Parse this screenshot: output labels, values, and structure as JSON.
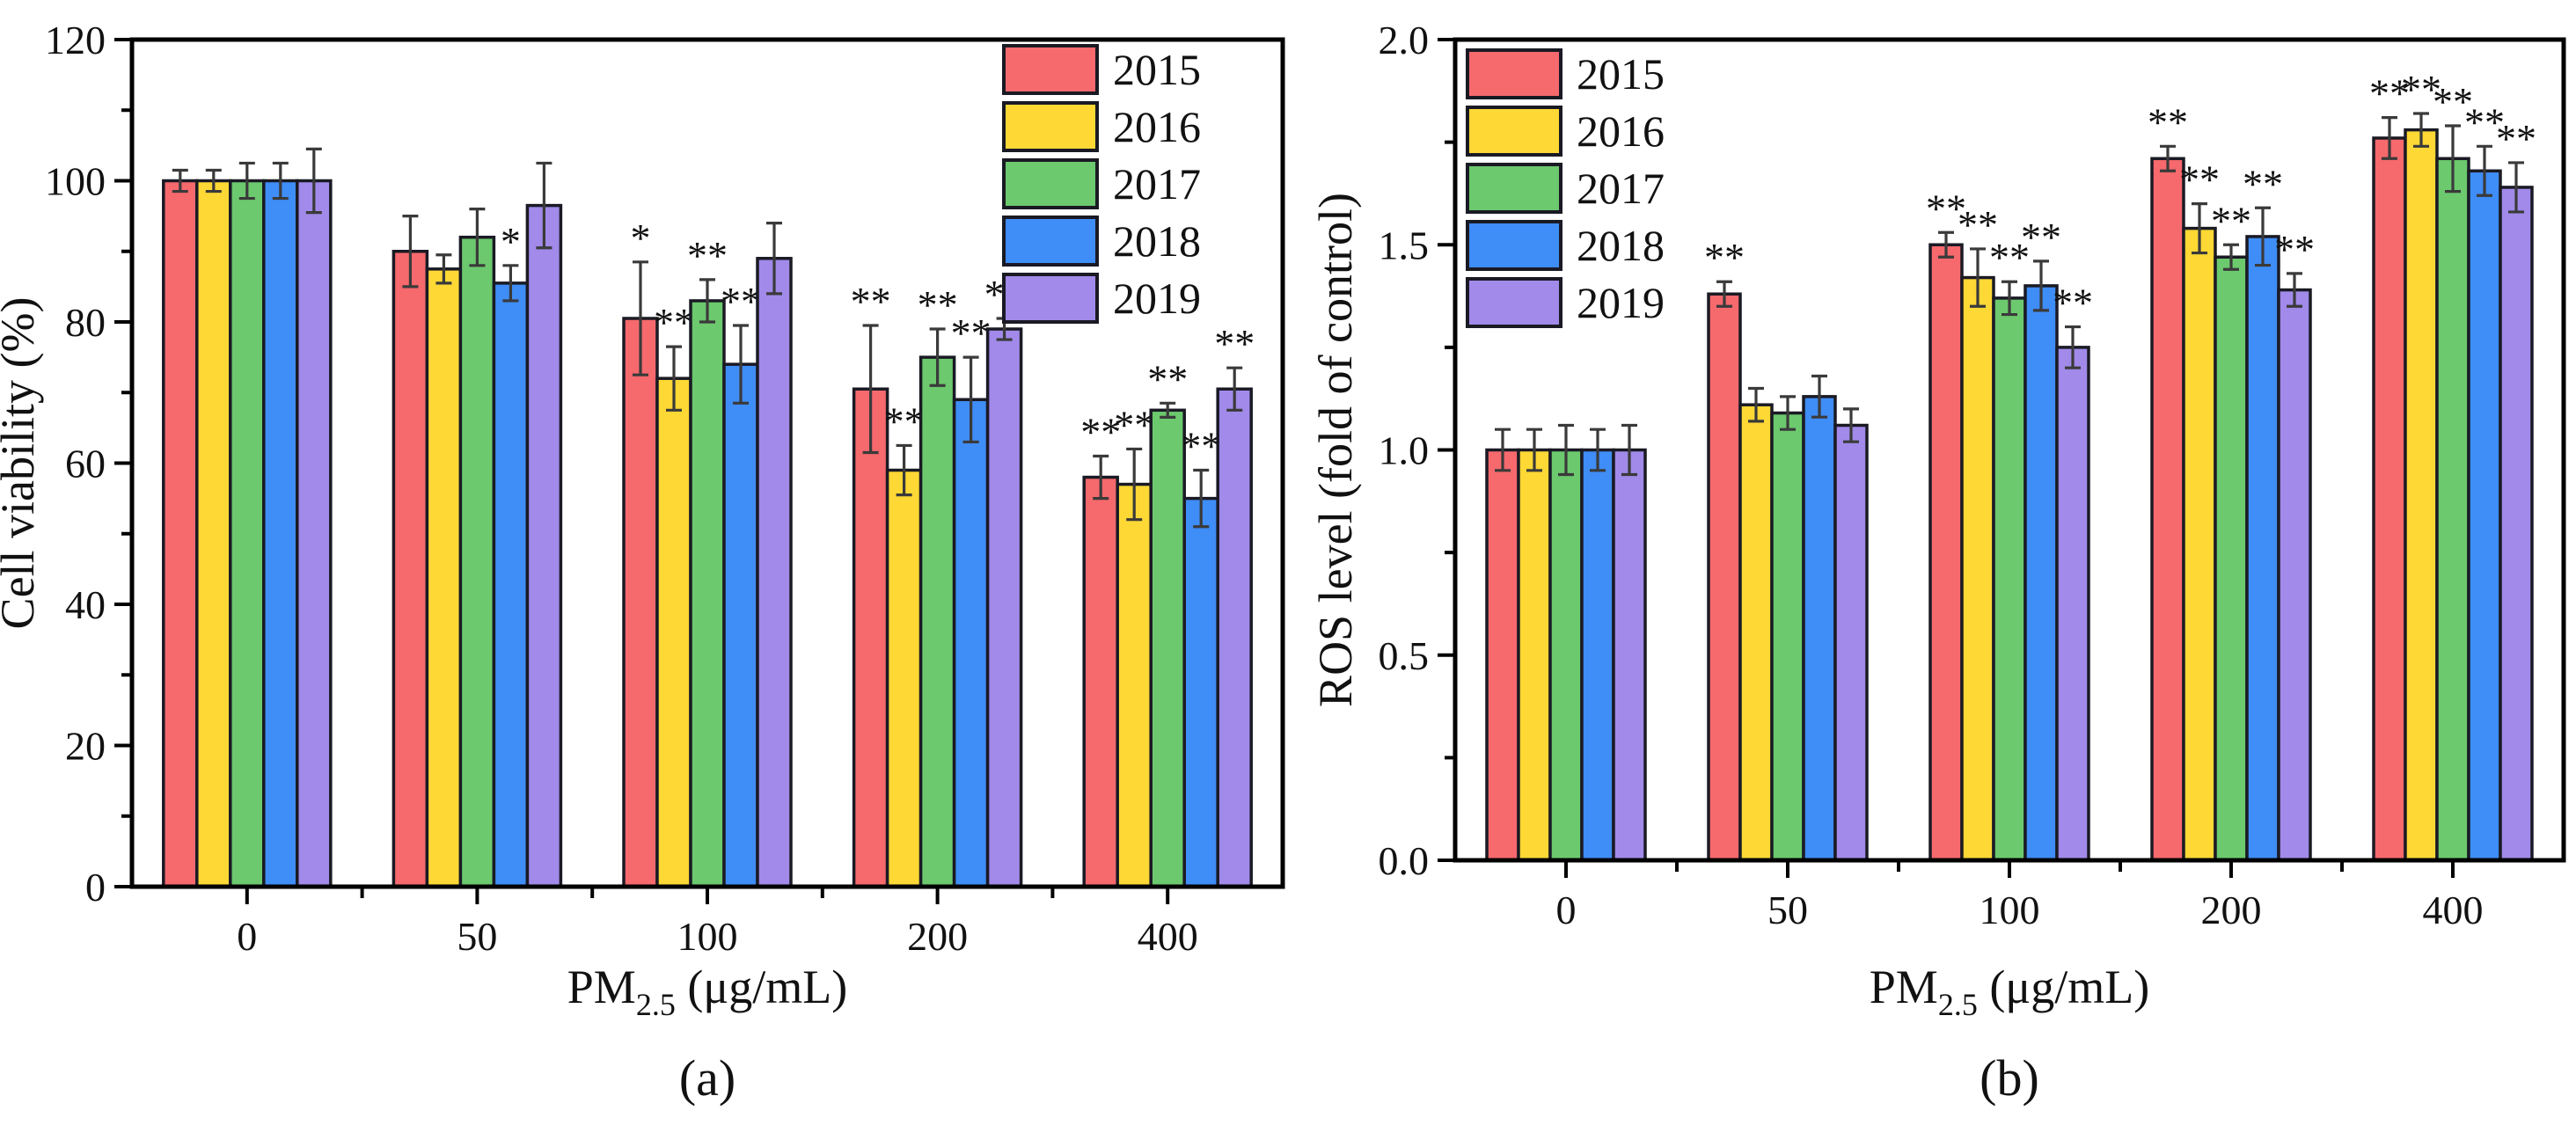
{
  "figure": {
    "captions": [
      "(a)",
      "(b)"
    ],
    "background": "#ffffff"
  },
  "palette": {
    "outline": "#1a1a24",
    "error_bar": "#3a3a3a",
    "axis": "#000000",
    "text": "#111111",
    "series_colors": {
      "2015": "#f6696d",
      "2016": "#fed835",
      "2017": "#6cc96e",
      "2018": "#3f8df6",
      "2019": "#a18ae9"
    }
  },
  "chart_data": [
    {
      "type": "bar",
      "panel": "a",
      "title": "",
      "ylabel": "Cell viability (%)",
      "xlabel": {
        "pre": "PM",
        "sub": "2.5",
        "post": " (μg/mL)"
      },
      "categories": [
        "0",
        "50",
        "100",
        "200",
        "400"
      ],
      "ylim": [
        0,
        120
      ],
      "yticks": [
        0,
        20,
        40,
        60,
        80,
        100,
        120
      ],
      "ytick_labels": [
        "0",
        "20",
        "40",
        "60",
        "80",
        "100",
        "120"
      ],
      "yminor": [
        10,
        30,
        50,
        70,
        90,
        110
      ],
      "grid": false,
      "legend_position": "top-right",
      "series": [
        {
          "name": "2015",
          "color": "#f6696d",
          "values": [
            100,
            90,
            80.5,
            70.5,
            58
          ],
          "errors": [
            1.5,
            5,
            8,
            9,
            3
          ],
          "sig": [
            "",
            "",
            "*",
            "**",
            "**"
          ]
        },
        {
          "name": "2016",
          "color": "#fed835",
          "values": [
            100,
            87.5,
            72,
            59,
            57
          ],
          "errors": [
            1.5,
            2,
            4.5,
            3.5,
            5
          ],
          "sig": [
            "",
            "",
            "**",
            "**",
            "**"
          ]
        },
        {
          "name": "2017",
          "color": "#6cc96e",
          "values": [
            100,
            92,
            83,
            75,
            67.5
          ],
          "errors": [
            2.5,
            4,
            3,
            4,
            1
          ],
          "sig": [
            "",
            "",
            "**",
            "**",
            "**"
          ]
        },
        {
          "name": "2018",
          "color": "#3f8df6",
          "values": [
            100,
            85.5,
            74,
            69,
            55
          ],
          "errors": [
            2.5,
            2.5,
            5.5,
            6,
            4
          ],
          "sig": [
            "",
            "*",
            "**",
            "**",
            "**"
          ]
        },
        {
          "name": "2019",
          "color": "#a18ae9",
          "values": [
            100,
            96.5,
            89,
            79,
            70.5
          ],
          "errors": [
            4.5,
            6,
            5,
            1.5,
            3
          ],
          "sig": [
            "",
            "",
            "",
            "**",
            "**"
          ]
        }
      ]
    },
    {
      "type": "bar",
      "panel": "b",
      "title": "",
      "ylabel": "ROS level (fold of control)",
      "xlabel": {
        "pre": "PM",
        "sub": "2.5",
        "post": " (μg/mL)"
      },
      "categories": [
        "0",
        "50",
        "100",
        "200",
        "400"
      ],
      "ylim": [
        0,
        2.0
      ],
      "yticks": [
        0,
        0.5,
        1.0,
        1.5,
        2.0
      ],
      "ytick_labels": [
        "0.0",
        "0.5",
        "1.0",
        "1.5",
        "2.0"
      ],
      "yminor": [
        0.25,
        0.75,
        1.25,
        1.75
      ],
      "grid": false,
      "legend_position": "top-left",
      "series": [
        {
          "name": "2015",
          "color": "#f6696d",
          "values": [
            1.0,
            1.38,
            1.5,
            1.71,
            1.76
          ],
          "errors": [
            0.05,
            0.03,
            0.03,
            0.03,
            0.05
          ],
          "sig": [
            "",
            "**",
            "**",
            "**",
            "**"
          ]
        },
        {
          "name": "2016",
          "color": "#fed835",
          "values": [
            1.0,
            1.11,
            1.42,
            1.54,
            1.78
          ],
          "errors": [
            0.05,
            0.04,
            0.07,
            0.06,
            0.04
          ],
          "sig": [
            "",
            "",
            "**",
            "**",
            "**"
          ]
        },
        {
          "name": "2017",
          "color": "#6cc96e",
          "values": [
            1.0,
            1.09,
            1.37,
            1.47,
            1.71
          ],
          "errors": [
            0.06,
            0.04,
            0.04,
            0.03,
            0.08
          ],
          "sig": [
            "",
            "",
            "**",
            "**",
            "**"
          ]
        },
        {
          "name": "2018",
          "color": "#3f8df6",
          "values": [
            1.0,
            1.13,
            1.4,
            1.52,
            1.68
          ],
          "errors": [
            0.05,
            0.05,
            0.06,
            0.07,
            0.06
          ],
          "sig": [
            "",
            "",
            "**",
            "**",
            "**"
          ]
        },
        {
          "name": "2019",
          "color": "#a18ae9",
          "values": [
            1.0,
            1.06,
            1.25,
            1.39,
            1.64
          ],
          "errors": [
            0.06,
            0.04,
            0.05,
            0.04,
            0.06
          ],
          "sig": [
            "",
            "",
            "**",
            "**",
            "**"
          ]
        }
      ]
    }
  ]
}
